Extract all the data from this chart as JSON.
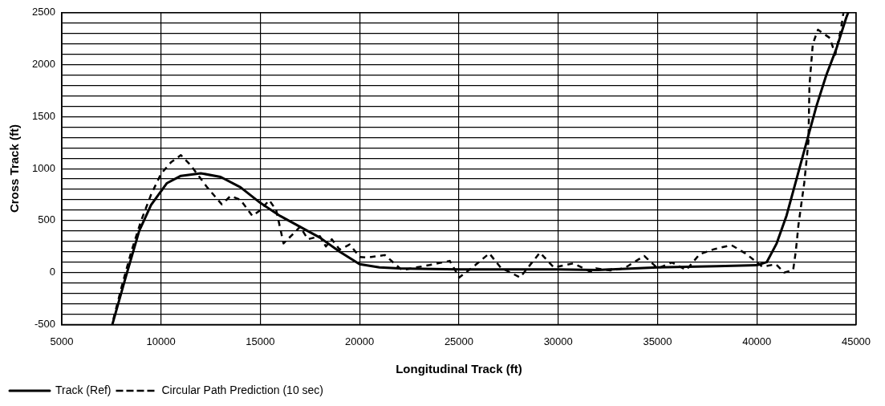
{
  "chart_data": {
    "type": "line",
    "xlabel": "Longitudinal Track (ft)",
    "ylabel": "Cross Track (ft)",
    "xlim": [
      5000,
      45000
    ],
    "xticks": [
      5000,
      10000,
      15000,
      20000,
      25000,
      30000,
      35000,
      40000,
      45000
    ],
    "ylim": [
      -500,
      2500
    ],
    "yticks": [
      -500,
      {
        "value": -400,
        "label": null
      },
      {
        "value": -300,
        "label": null
      },
      {
        "value": -200,
        "label": null
      },
      {
        "value": -100,
        "label": null
      },
      0,
      {
        "value": 100,
        "label": null
      },
      {
        "value": 200,
        "label": null
      },
      {
        "value": 300,
        "label": null
      },
      {
        "value": 400,
        "label": null
      },
      500,
      {
        "value": 600,
        "label": null
      },
      {
        "value": 700,
        "label": null
      },
      {
        "value": 800,
        "label": null
      },
      {
        "value": 900,
        "label": null
      },
      1000,
      {
        "value": 1100,
        "label": null
      },
      {
        "value": 1200,
        "label": null
      },
      {
        "value": 1300,
        "label": null
      },
      {
        "value": 1400,
        "label": null
      },
      1500,
      {
        "value": 1600,
        "label": null
      },
      {
        "value": 1700,
        "label": null
      },
      {
        "value": 1800,
        "label": null
      },
      {
        "value": 1900,
        "label": null
      },
      2000,
      {
        "value": 2100,
        "label": null
      },
      {
        "value": 2200,
        "label": null
      },
      {
        "value": 2300,
        "label": null
      },
      {
        "value": 2400,
        "label": null
      },
      2500
    ],
    "grid": true,
    "legend": "bottom left",
    "marker": "none",
    "series": [
      {
        "name": "Track (Ref)",
        "color": "#000000",
        "line_style": "solid",
        "x": [
          7550,
          8200,
          8900,
          9500,
          10300,
          11000,
          12000,
          13000,
          14000,
          15000,
          16000,
          17000,
          18000,
          19000,
          20000,
          21000,
          22000,
          25000,
          28000,
          30000,
          32000,
          35000,
          38000,
          40000,
          40500,
          41000,
          41500,
          42000,
          42500,
          43000,
          43500,
          44000,
          44500,
          44600
        ],
        "values": [
          -500,
          -60,
          400,
          650,
          860,
          930,
          955,
          920,
          820,
          670,
          544,
          440,
          336,
          200,
          80,
          50,
          40,
          30,
          30,
          30,
          25,
          50,
          60,
          70,
          100,
          280,
          550,
          900,
          1250,
          1600,
          1900,
          2150,
          2450,
          2500
        ]
      },
      {
        "name": "Circular Path Prediction (10 sec)",
        "color": "#000000",
        "line_style": "dashed",
        "x": [
          7600,
          8000,
          8500,
          9000,
          9500,
          10000,
          10500,
          11000,
          11500,
          12340,
          13060,
          13500,
          14000,
          14600,
          15000,
          15450,
          15800,
          16170,
          16800,
          17000,
          17400,
          18000,
          18300,
          18600,
          19000,
          19500,
          20000,
          20420,
          21270,
          22130,
          23530,
          24540,
          25020,
          25830,
          26530,
          27100,
          28080,
          29080,
          29780,
          30770,
          31620,
          31910,
          32620,
          33320,
          34330,
          35010,
          35730,
          36450,
          37120,
          37840,
          38720,
          39430,
          40280,
          40960,
          41380,
          41830,
          41960,
          42100,
          42390,
          42600,
          42650,
          42820,
          43080,
          43680,
          43950,
          44230,
          44360
        ],
        "values": [
          -450,
          -150,
          200,
          500,
          750,
          950,
          1060,
          1130,
          1030,
          816,
          656,
          736,
          700,
          544,
          600,
          696,
          600,
          280,
          400,
          440,
          320,
          350,
          250,
          320,
          220,
          270,
          150,
          144,
          168,
          24,
          72,
          112,
          -48,
          72,
          184,
          48,
          -48,
          192,
          48,
          88,
          8,
          40,
          20,
          40,
          160,
          40,
          96,
          24,
          176,
          224,
          264,
          184,
          56,
          80,
          0,
          24,
          200,
          464,
          864,
          1264,
          1800,
          2200,
          2336,
          2256,
          2096,
          2336,
          2496
        ]
      }
    ]
  }
}
